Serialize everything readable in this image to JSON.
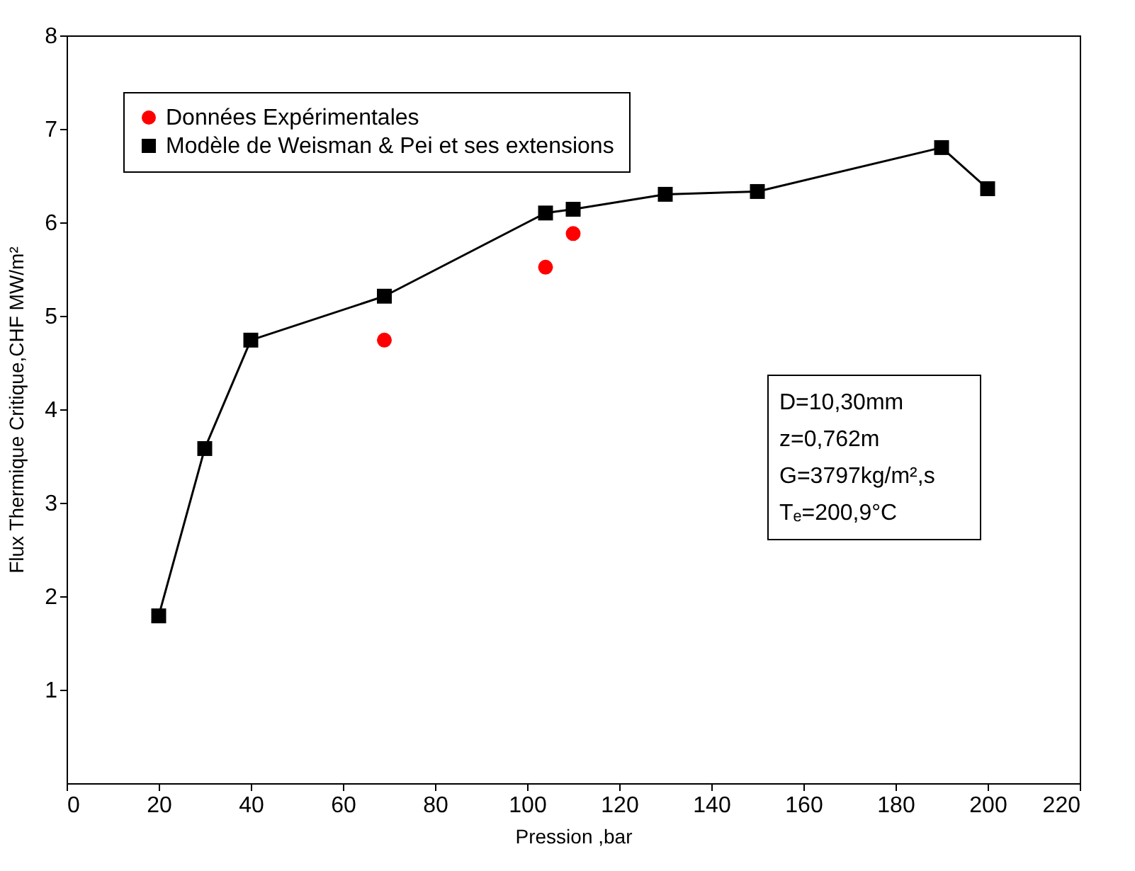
{
  "chart_data": {
    "type": "line",
    "xlabel": "Pression ,bar",
    "ylabel": "Flux Thermique Critique,CHF MW/m²",
    "series": [
      {
        "name": "Données Expérimentales",
        "type": "scatter",
        "color": "#ff0000",
        "marker": "circle",
        "x": [
          69,
          104,
          110
        ],
        "values": [
          4.74,
          5.52,
          5.88
        ]
      },
      {
        "name": "Modèle de Weisman & Pei et ses extensions",
        "color": "#000000",
        "marker": "square",
        "x": [
          20,
          30,
          40,
          69,
          104,
          110,
          130,
          150,
          190,
          200
        ],
        "values": [
          1.79,
          3.58,
          4.74,
          5.21,
          6.1,
          6.14,
          6.3,
          6.33,
          6.8,
          6.36
        ]
      }
    ],
    "xlim": [
      0,
      220
    ],
    "xticks": [
      0,
      20,
      40,
      60,
      80,
      100,
      120,
      140,
      160,
      180,
      200,
      220
    ],
    "ylim": [
      0,
      8
    ],
    "yticks": [
      1,
      2,
      3,
      4,
      5,
      6,
      7,
      8
    ],
    "grid": false,
    "legend": "top left",
    "annotations": [
      "D=10,30mm",
      "z=0,762m",
      "G=3797kg/m²,s",
      "Tₑ=200,9°C"
    ]
  }
}
